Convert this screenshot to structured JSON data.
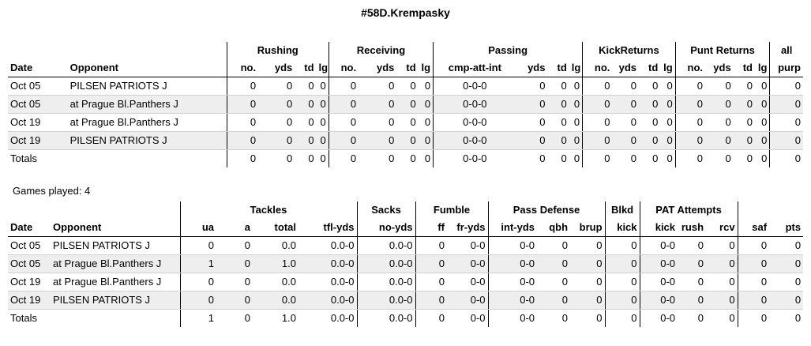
{
  "title": "#58D.Krempasky",
  "games_played": "Games played: 4",
  "offense": {
    "group_headers": [
      "Rushing",
      "Receiving",
      "Passing",
      "KickReturns",
      "Punt Returns",
      "all"
    ],
    "columns": [
      "Date",
      "Opponent",
      "no.",
      "yds",
      "td",
      "lg",
      "no.",
      "yds",
      "td",
      "lg",
      "cmp-att-int",
      "yds",
      "td",
      "lg",
      "no.",
      "yds",
      "td",
      "lg",
      "no.",
      "yds",
      "td",
      "lg",
      "purp"
    ],
    "rows": [
      [
        "Oct 05",
        "PILSEN PATRIOTS J",
        "0",
        "0",
        "0",
        "0",
        "0",
        "0",
        "0",
        "0",
        "0-0-0",
        "0",
        "0",
        "0",
        "0",
        "0",
        "0",
        "0",
        "0",
        "0",
        "0",
        "0",
        "0"
      ],
      [
        "Oct 05",
        "at Prague Bl.Panthers J",
        "0",
        "0",
        "0",
        "0",
        "0",
        "0",
        "0",
        "0",
        "0-0-0",
        "0",
        "0",
        "0",
        "0",
        "0",
        "0",
        "0",
        "0",
        "0",
        "0",
        "0",
        "0"
      ],
      [
        "Oct 19",
        "at Prague Bl.Panthers J",
        "0",
        "0",
        "0",
        "0",
        "0",
        "0",
        "0",
        "0",
        "0-0-0",
        "0",
        "0",
        "0",
        "0",
        "0",
        "0",
        "0",
        "0",
        "0",
        "0",
        "0",
        "0"
      ],
      [
        "Oct 19",
        "PILSEN PATRIOTS J",
        "0",
        "0",
        "0",
        "0",
        "0",
        "0",
        "0",
        "0",
        "0-0-0",
        "0",
        "0",
        "0",
        "0",
        "0",
        "0",
        "0",
        "0",
        "0",
        "0",
        "0",
        "0"
      ],
      [
        "Totals",
        "",
        "0",
        "0",
        "0",
        "0",
        "0",
        "0",
        "0",
        "0",
        "0-0-0",
        "0",
        "0",
        "0",
        "0",
        "0",
        "0",
        "0",
        "0",
        "0",
        "0",
        "0",
        "0"
      ]
    ]
  },
  "defense": {
    "group_headers": [
      "Tackles",
      "Sacks",
      "Fumble",
      "Pass Defense",
      "Blkd",
      "PAT Attempts"
    ],
    "columns": [
      "Date",
      "Opponent",
      "ua",
      "a",
      "total",
      "tfl-yds",
      "no-yds",
      "ff",
      "fr-yds",
      "int-yds",
      "qbh",
      "brup",
      "kick",
      "kick",
      "rush",
      "rcv",
      "saf",
      "pts"
    ],
    "rows": [
      [
        "Oct 05",
        "PILSEN PATRIOTS J",
        "0",
        "0",
        "0.0",
        "0.0-0",
        "0.0-0",
        "0",
        "0-0",
        "0-0",
        "0",
        "0",
        "0",
        "0-0",
        "0",
        "0",
        "0",
        "0"
      ],
      [
        "Oct 05",
        "at Prague Bl.Panthers J",
        "1",
        "0",
        "1.0",
        "0.0-0",
        "0.0-0",
        "0",
        "0-0",
        "0-0",
        "0",
        "0",
        "0",
        "0-0",
        "0",
        "0",
        "0",
        "0"
      ],
      [
        "Oct 19",
        "at Prague Bl.Panthers J",
        "0",
        "0",
        "0.0",
        "0.0-0",
        "0.0-0",
        "0",
        "0-0",
        "0-0",
        "0",
        "0",
        "0",
        "0-0",
        "0",
        "0",
        "0",
        "0"
      ],
      [
        "Oct 19",
        "PILSEN PATRIOTS J",
        "0",
        "0",
        "0.0",
        "0.0-0",
        "0.0-0",
        "0",
        "0-0",
        "0-0",
        "0",
        "0",
        "0",
        "0-0",
        "0",
        "0",
        "0",
        "0"
      ],
      [
        "Totals",
        "",
        "1",
        "0",
        "1.0",
        "0.0-0",
        "0.0-0",
        "0",
        "0-0",
        "0-0",
        "0",
        "0",
        "0",
        "0-0",
        "0",
        "0",
        "0",
        "0"
      ]
    ]
  }
}
